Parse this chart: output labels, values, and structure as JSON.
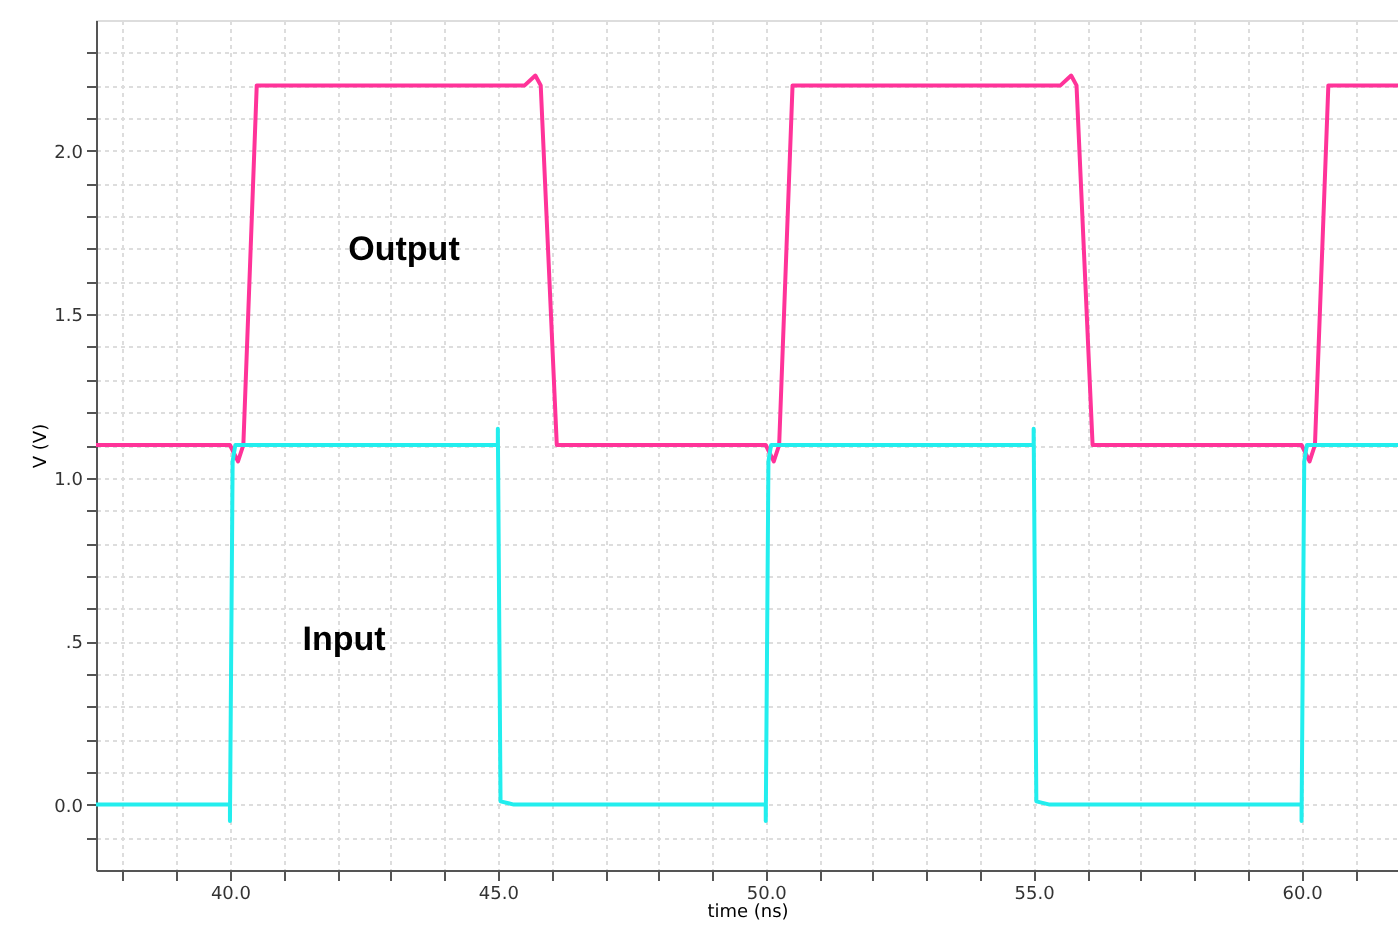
{
  "chart_data": {
    "type": "line",
    "xlabel": "time (ns)",
    "ylabel": "V (V)",
    "xlim": [
      37.5,
      61.8
    ],
    "ylim": [
      -0.2,
      2.4
    ],
    "xticks": [
      {
        "value": 38,
        "label": null
      },
      {
        "value": 39,
        "label": null
      },
      {
        "value": 40,
        "label": "40.0"
      },
      {
        "value": 41,
        "label": null
      },
      {
        "value": 42,
        "label": null
      },
      {
        "value": 43,
        "label": null
      },
      {
        "value": 44,
        "label": null
      },
      {
        "value": 45,
        "label": "45.0"
      },
      {
        "value": 46,
        "label": null
      },
      {
        "value": 47,
        "label": null
      },
      {
        "value": 48,
        "label": null
      },
      {
        "value": 49,
        "label": null
      },
      {
        "value": 50,
        "label": "50.0"
      },
      {
        "value": 51,
        "label": null
      },
      {
        "value": 52,
        "label": null
      },
      {
        "value": 53,
        "label": null
      },
      {
        "value": 54,
        "label": null
      },
      {
        "value": 55,
        "label": "55.0"
      },
      {
        "value": 56,
        "label": null
      },
      {
        "value": 57,
        "label": null
      },
      {
        "value": 58,
        "label": null
      },
      {
        "value": 59,
        "label": null
      },
      {
        "value": 60,
        "label": "60.0"
      },
      {
        "value": 61,
        "label": null
      }
    ],
    "yticks": [
      {
        "value": -0.1,
        "label": null
      },
      {
        "value": 0,
        "label": "0.0"
      },
      {
        "value": 0.1,
        "label": null
      },
      {
        "value": 0.2,
        "label": null
      },
      {
        "value": 0.3,
        "label": null
      },
      {
        "value": 0.4,
        "label": null
      },
      {
        "value": 0.5,
        "label": ".5"
      },
      {
        "value": 0.6,
        "label": null
      },
      {
        "value": 0.7,
        "label": null
      },
      {
        "value": 0.8,
        "label": null
      },
      {
        "value": 0.9,
        "label": null
      },
      {
        "value": 1,
        "label": "1.0"
      },
      {
        "value": 1.1,
        "label": null
      },
      {
        "value": 1.2,
        "label": null
      },
      {
        "value": 1.3,
        "label": null
      },
      {
        "value": 1.4,
        "label": null
      },
      {
        "value": 1.5,
        "label": "1.5"
      },
      {
        "value": 1.6,
        "label": null
      },
      {
        "value": 1.7,
        "label": null
      },
      {
        "value": 1.8,
        "label": null
      },
      {
        "value": 1.9,
        "label": null
      },
      {
        "value": 2,
        "label": "2.0"
      },
      {
        "value": 2.1,
        "label": null
      },
      {
        "value": 2.2,
        "label": null
      },
      {
        "value": 2.3,
        "label": null
      }
    ],
    "grid": true,
    "marker": "none",
    "line_style": "solid",
    "series": [
      {
        "name": "Output",
        "color": "#ff3399",
        "x": [
          37.5,
          40.0,
          40.15,
          40.25,
          40.5,
          45.5,
          45.7,
          45.8,
          46.1,
          50.0,
          50.15,
          50.25,
          50.5,
          55.5,
          55.7,
          55.8,
          56.1,
          60.0,
          60.15,
          60.25,
          60.5,
          61.8
        ],
        "values": [
          1.1,
          1.1,
          1.05,
          1.1,
          2.2,
          2.2,
          2.23,
          2.2,
          1.1,
          1.1,
          1.05,
          1.1,
          2.2,
          2.2,
          2.23,
          2.2,
          1.1,
          1.1,
          1.05,
          1.1,
          2.2,
          2.2
        ]
      },
      {
        "name": "Input",
        "color": "#22eeee",
        "x": [
          37.5,
          40.0,
          40.0,
          40.05,
          40.1,
          45.0,
          45.0,
          45.05,
          45.3,
          50.0,
          50.0,
          50.05,
          50.1,
          55.0,
          55.0,
          55.05,
          55.3,
          60.0,
          60.0,
          60.05,
          60.1,
          61.8
        ],
        "values": [
          0,
          0,
          -0.05,
          1.05,
          1.1,
          1.1,
          1.15,
          0.01,
          0,
          0,
          -0.05,
          1.05,
          1.1,
          1.1,
          1.15,
          0.01,
          0,
          0,
          -0.05,
          1.05,
          1.1,
          1.1
        ]
      }
    ]
  }
}
